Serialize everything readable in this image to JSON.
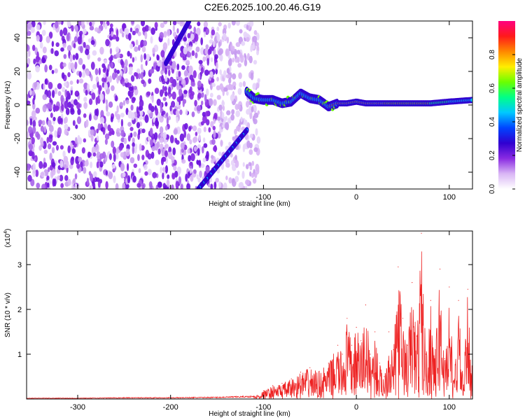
{
  "title": "C2E6.2025.100.20.46.G19",
  "chart_data": [
    {
      "type": "heatmap",
      "xlabel": "Height of straight line (km)",
      "ylabel": "Frequency (Hz)",
      "xlim": [
        -355,
        125
      ],
      "ylim": [
        -50,
        50
      ],
      "xticks": [
        -300,
        -200,
        -100,
        0,
        100
      ],
      "yticks": [
        -40,
        -20,
        0,
        20,
        40
      ],
      "colorbar": {
        "label": "Normalized spectral amplitude",
        "range": [
          0,
          1
        ],
        "ticks": [
          0.0,
          0.2,
          0.4,
          0.6,
          0.8
        ],
        "tick_labels": [
          "0.0",
          "0.2",
          "0.4",
          "0.6",
          "0.8"
        ],
        "colormap": [
          "#ffffff",
          "#d9b6f5",
          "#8a2be2",
          "#3000d0",
          "#0044ff",
          "#00c8ff",
          "#00ff88",
          "#6aff00",
          "#ffee00",
          "#ff8800",
          "#ff1a1a",
          "#ff0080"
        ]
      },
      "features": {
        "noise_region_x": [
          -355,
          -115
        ],
        "diagonal_trace_upper": [
          [
            -180,
            50
          ],
          [
            -205,
            25
          ]
        ],
        "diagonal_trace_lower": [
          [
            -118,
            -15
          ],
          [
            -170,
            -50
          ]
        ],
        "ridge": [
          [
            -118,
            8
          ],
          [
            -110,
            4
          ],
          [
            -100,
            3
          ],
          [
            -90,
            3
          ],
          [
            -80,
            1
          ],
          [
            -70,
            2
          ],
          [
            -60,
            7
          ],
          [
            -50,
            4
          ],
          [
            -40,
            3
          ],
          [
            -30,
            -1
          ],
          [
            -20,
            1
          ],
          [
            -10,
            1
          ],
          [
            0,
            2
          ],
          [
            10,
            1
          ],
          [
            20,
            1
          ],
          [
            40,
            1
          ],
          [
            60,
            1
          ],
          [
            80,
            1
          ],
          [
            100,
            2
          ],
          [
            125,
            3
          ]
        ],
        "peak_segment_x": [
          -30,
          80
        ]
      }
    },
    {
      "type": "line",
      "xlabel": "Height of straight line (km)",
      "ylabel": "SNR (10 * v/v)",
      "y_multiplier": "(x10",
      "y_multiplier_exp": "4",
      "y_multiplier_close": ")",
      "xlim": [
        -355,
        125
      ],
      "ylim": [
        0,
        3.75
      ],
      "xticks": [
        -300,
        -200,
        -100,
        0,
        100
      ],
      "yticks": [
        1,
        2,
        3
      ],
      "line_color": "#ee2222",
      "series": [
        {
          "x": [
            -355,
            -300,
            -250,
            -200,
            -150,
            -110,
            -100,
            -90,
            -80,
            -70,
            -60,
            -50,
            -40,
            -30,
            -20,
            -15,
            -10,
            -5,
            0,
            5,
            10,
            15,
            20,
            25,
            30,
            35,
            40,
            45,
            50,
            55,
            60,
            65,
            70,
            75,
            80,
            85,
            90,
            95,
            100,
            105,
            110,
            115,
            120,
            125
          ],
          "y": [
            0.02,
            0.02,
            0.03,
            0.03,
            0.04,
            0.06,
            0.18,
            0.3,
            0.35,
            0.45,
            0.6,
            0.7,
            0.62,
            0.8,
            1.2,
            1.0,
            1.8,
            1.2,
            1.6,
            1.3,
            2.1,
            1.0,
            1.5,
            0.8,
            0.5,
            1.5,
            1.1,
            2.95,
            1.8,
            1.2,
            2.6,
            1.4,
            3.7,
            1.0,
            2.2,
            1.1,
            2.9,
            0.9,
            2.5,
            0.4,
            2.2,
            0.3,
            2.45,
            0.75
          ]
        }
      ]
    }
  ]
}
